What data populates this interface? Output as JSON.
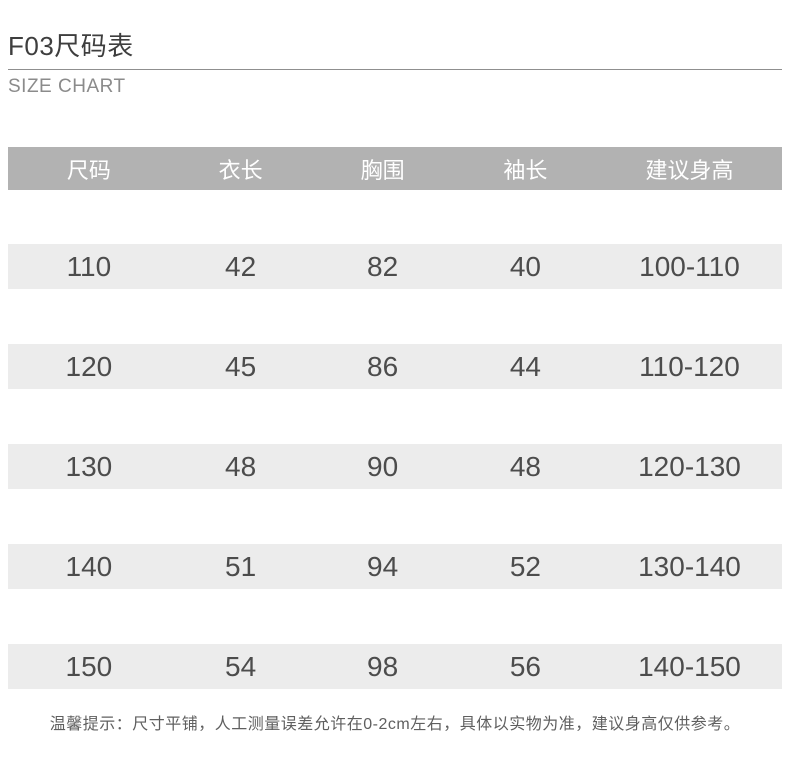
{
  "page": {
    "title": "F03尺码表",
    "subtitle": "SIZE CHART",
    "footer_note": "温馨提示：尺寸平铺，人工测量误差允许在0-2cm左右，具体以实物为准，建议身高仅供参考。"
  },
  "size_table": {
    "columns": [
      "尺码",
      "衣长",
      "胸围",
      "袖长",
      "建议身高"
    ],
    "rows": [
      [
        "110",
        "42",
        "82",
        "40",
        "100-110"
      ],
      [
        "120",
        "45",
        "86",
        "44",
        "110-120"
      ],
      [
        "130",
        "48",
        "90",
        "48",
        "120-130"
      ],
      [
        "140",
        "51",
        "94",
        "52",
        "130-140"
      ],
      [
        "150",
        "54",
        "98",
        "56",
        "140-150"
      ]
    ]
  },
  "colors": {
    "page_bg": "#ffffff",
    "header_row_bg": "#b2b2b2",
    "header_row_text": "#ffffff",
    "data_row_bg": "#ececec",
    "data_row_text": "#4c4c4c",
    "title_text": "#3e3e3e",
    "subtitle_text": "#8b8b8b",
    "divider": "#8f8f8f",
    "footer_text": "#5f5f5f"
  },
  "chart_data": {
    "type": "table",
    "title": "F03尺码表",
    "subtitle": "SIZE CHART",
    "columns": [
      "尺码",
      "衣长",
      "胸围",
      "袖长",
      "建议身高"
    ],
    "rows": [
      [
        "110",
        "42",
        "82",
        "40",
        "100-110"
      ],
      [
        "120",
        "45",
        "86",
        "44",
        "110-120"
      ],
      [
        "130",
        "48",
        "90",
        "48",
        "120-130"
      ],
      [
        "140",
        "51",
        "94",
        "52",
        "130-140"
      ],
      [
        "150",
        "54",
        "98",
        "56",
        "140-150"
      ]
    ],
    "note": "温馨提示：尺寸平铺，人工测量误差允许在0-2cm左右，具体以实物为准，建议身高仅供参考。"
  }
}
